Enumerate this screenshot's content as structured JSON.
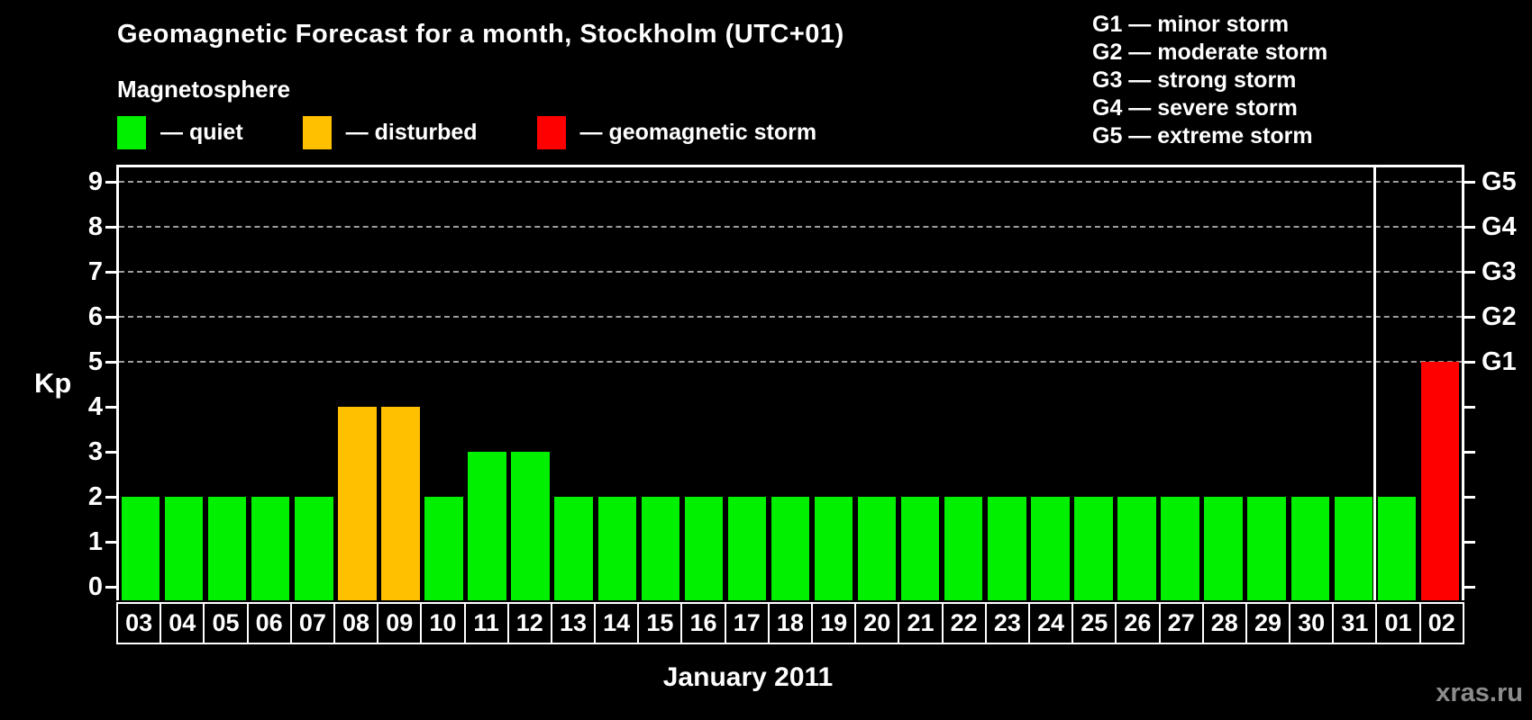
{
  "title": "Geomagnetic Forecast for a month, Stockholm (UTC+01)",
  "subtitle": "Magnetosphere",
  "legend": {
    "items": [
      {
        "name": "quiet",
        "label": "— quiet",
        "color": "#00f000"
      },
      {
        "name": "disturbed",
        "label": "— disturbed",
        "color": "#ffc000"
      },
      {
        "name": "storm",
        "label": "— geomagnetic storm",
        "color": "#ff0000"
      }
    ]
  },
  "storm_scale_legend": [
    "G1 — minor storm",
    "G2 — moderate storm",
    "G3 — strong storm",
    "G4 — severe storm",
    "G5 — extreme storm"
  ],
  "watermark": "xras.ru",
  "chart_data": {
    "type": "bar",
    "title": "Geomagnetic Forecast for a month, Stockholm (UTC+01)",
    "xlabel": "January 2011",
    "ylabel": "Kp",
    "ylim": [
      0,
      9
    ],
    "y_ticks": [
      0,
      1,
      2,
      3,
      4,
      5,
      6,
      7,
      8,
      9
    ],
    "gridlines_at": [
      5,
      6,
      7,
      8,
      9
    ],
    "grid_style": "dashed horizontal lines at Kp 5-9 only",
    "legend_position": "top-left",
    "right_axis_labels": [
      {
        "label": "G1",
        "kp": 5
      },
      {
        "label": "G2",
        "kp": 6
      },
      {
        "label": "G3",
        "kp": 7
      },
      {
        "label": "G4",
        "kp": 8
      },
      {
        "label": "G5",
        "kp": 9
      }
    ],
    "categories": [
      "03",
      "04",
      "05",
      "06",
      "07",
      "08",
      "09",
      "10",
      "11",
      "12",
      "13",
      "14",
      "15",
      "16",
      "17",
      "18",
      "19",
      "20",
      "21",
      "22",
      "23",
      "24",
      "25",
      "26",
      "27",
      "28",
      "29",
      "30",
      "31",
      "01",
      "02"
    ],
    "values": [
      2,
      2,
      2,
      2,
      2,
      4,
      4,
      2,
      3,
      3,
      2,
      2,
      2,
      2,
      2,
      2,
      2,
      2,
      2,
      2,
      2,
      2,
      2,
      2,
      2,
      2,
      2,
      2,
      2,
      2,
      5
    ],
    "statuses": [
      "quiet",
      "quiet",
      "quiet",
      "quiet",
      "quiet",
      "disturbed",
      "disturbed",
      "quiet",
      "quiet",
      "quiet",
      "quiet",
      "quiet",
      "quiet",
      "quiet",
      "quiet",
      "quiet",
      "quiet",
      "quiet",
      "quiet",
      "quiet",
      "quiet",
      "quiet",
      "quiet",
      "quiet",
      "quiet",
      "quiet",
      "quiet",
      "quiet",
      "quiet",
      "quiet",
      "storm"
    ],
    "colors": {
      "quiet": "#00f000",
      "disturbed": "#ffc000",
      "storm": "#ff0000"
    },
    "month_boundary_after_index": 28
  }
}
